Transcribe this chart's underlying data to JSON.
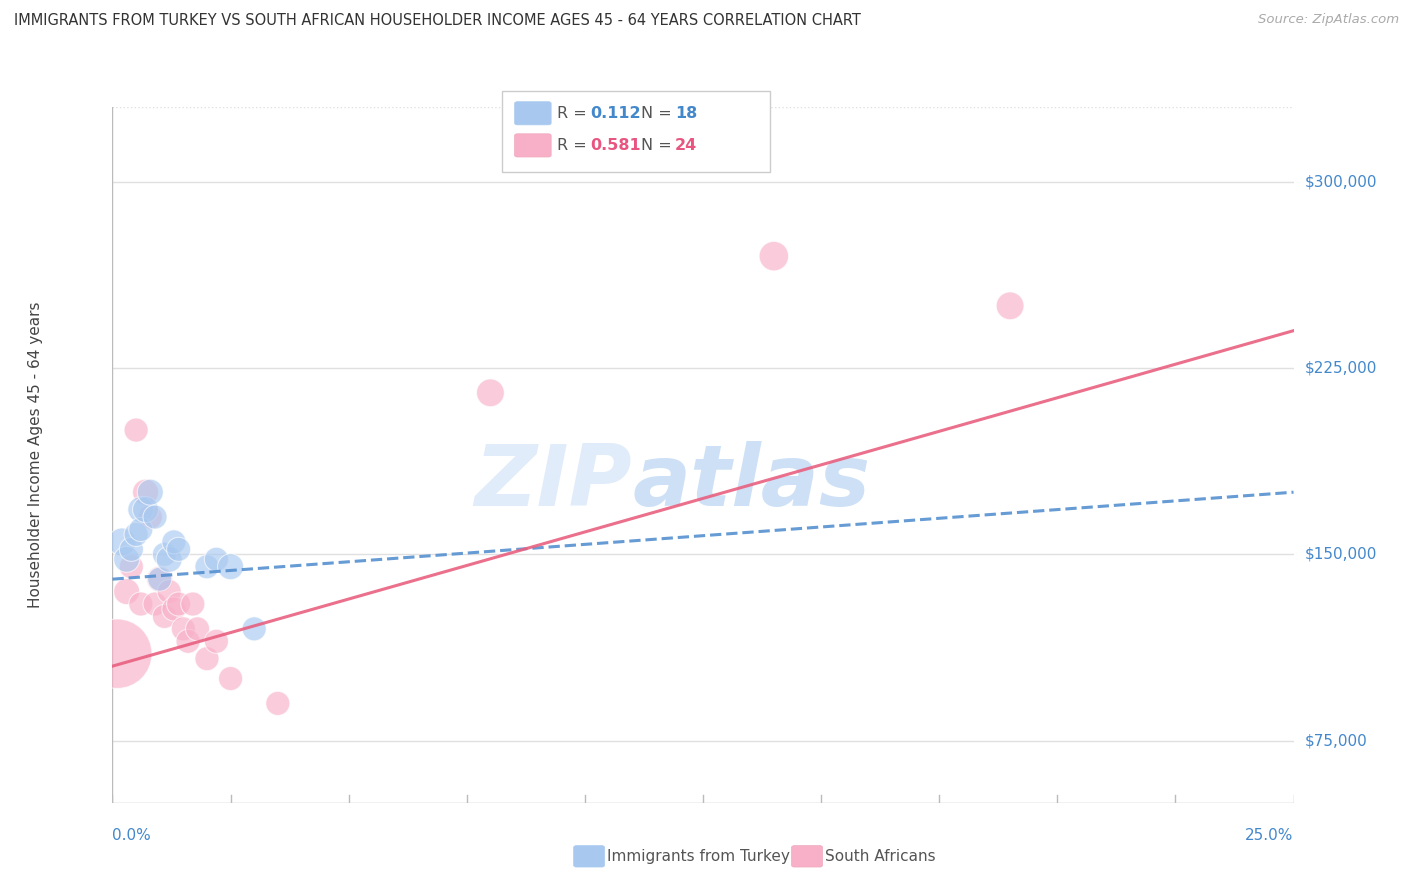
{
  "title": "IMMIGRANTS FROM TURKEY VS SOUTH AFRICAN HOUSEHOLDER INCOME AGES 45 - 64 YEARS CORRELATION CHART",
  "source": "Source: ZipAtlas.com",
  "ylabel": "Householder Income Ages 45 - 64 years",
  "watermark": "ZIPatlas",
  "turkey_color": "#a8c8f0",
  "sa_color": "#f8b0c8",
  "turkey_line_color": "#5590d0",
  "sa_line_color": "#e86080",
  "xlim": [
    0.0,
    0.25
  ],
  "ylim": [
    50000,
    330000
  ],
  "yticks": [
    75000,
    150000,
    225000,
    300000
  ],
  "ytick_labels": [
    "$75,000",
    "$150,000",
    "$225,000",
    "$300,000"
  ],
  "grid_color": "#e0e0e0",
  "bg_color": "#ffffff",
  "turkey_x": [
    0.002,
    0.003,
    0.004,
    0.005,
    0.006,
    0.006,
    0.007,
    0.008,
    0.009,
    0.01,
    0.011,
    0.012,
    0.013,
    0.014,
    0.02,
    0.022,
    0.025,
    0.03
  ],
  "turkey_y": [
    155000,
    148000,
    152000,
    158000,
    168000,
    160000,
    168000,
    175000,
    165000,
    140000,
    150000,
    148000,
    155000,
    152000,
    145000,
    148000,
    145000,
    120000
  ],
  "turkey_size": [
    400,
    350,
    300,
    300,
    350,
    300,
    350,
    350,
    300,
    300,
    300,
    350,
    300,
    300,
    300,
    300,
    350,
    300
  ],
  "sa_x": [
    0.001,
    0.003,
    0.004,
    0.005,
    0.006,
    0.007,
    0.008,
    0.009,
    0.01,
    0.011,
    0.012,
    0.013,
    0.014,
    0.015,
    0.016,
    0.017,
    0.018,
    0.02,
    0.022,
    0.025,
    0.035,
    0.08,
    0.14,
    0.19
  ],
  "sa_y": [
    110000,
    135000,
    145000,
    200000,
    130000,
    175000,
    165000,
    130000,
    140000,
    125000,
    135000,
    128000,
    130000,
    120000,
    115000,
    130000,
    120000,
    108000,
    115000,
    100000,
    90000,
    215000,
    270000,
    250000
  ],
  "sa_size": [
    2500,
    350,
    300,
    300,
    300,
    350,
    300,
    300,
    350,
    300,
    300,
    300,
    300,
    300,
    300,
    300,
    300,
    300,
    300,
    300,
    300,
    400,
    450,
    400
  ],
  "legend_r1": "0.112",
  "legend_n1": "18",
  "legend_r2": "0.581",
  "legend_n2": "24",
  "legend_label_turkey": "Immigrants from Turkey",
  "legend_label_sa": "South Africans",
  "turkey_trend": [
    0.0,
    0.25,
    140000,
    175000
  ],
  "sa_trend": [
    0.0,
    0.25,
    105000,
    240000
  ]
}
